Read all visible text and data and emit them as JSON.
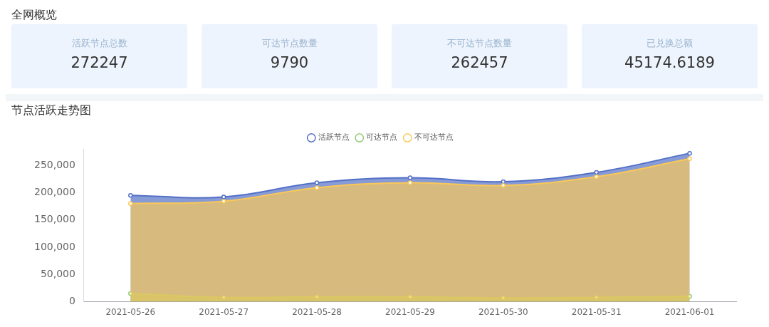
{
  "chart_data": [
    {
      "type": "other",
      "title": "全网概览",
      "annotations": [
        "活跃节点总数",
        "272247",
        "可达节点数量",
        "9790",
        "不可达节点数量",
        "262457",
        "已兑换总额",
        "45174.6189"
      ]
    },
    {
      "type": "area",
      "title": "节点活跃走势图",
      "categories": [
        "2021-05-26",
        "2021-05-27",
        "2021-05-28",
        "2021-05-29",
        "2021-05-30",
        "2021-05-31",
        "2021-06-01"
      ],
      "series": [
        {
          "name": "活跃节点",
          "color": "#5470c6",
          "values": [
            195000,
            192000,
            218000,
            227000,
            220000,
            237000,
            272000
          ]
        },
        {
          "name": "可达节点",
          "color": "#91cc75",
          "values": [
            15000,
            8000,
            9000,
            9000,
            7000,
            8000,
            10000
          ]
        },
        {
          "name": "不可达节点",
          "color": "#fac858",
          "values": [
            180000,
            184000,
            209000,
            218000,
            213000,
            229000,
            262000
          ]
        }
      ],
      "ylim": [
        0,
        280000
      ],
      "yticks": [
        {
          "value": 0,
          "label": "0"
        },
        {
          "value": 50000,
          "label": "50,000"
        },
        {
          "value": 100000,
          "label": "100,000"
        },
        {
          "value": 150000,
          "label": "150,000"
        },
        {
          "value": 200000,
          "label": "200,000"
        },
        {
          "value": 250000,
          "label": "250,000"
        }
      ],
      "grid": false,
      "legend": "top",
      "marker": "circle"
    }
  ]
}
